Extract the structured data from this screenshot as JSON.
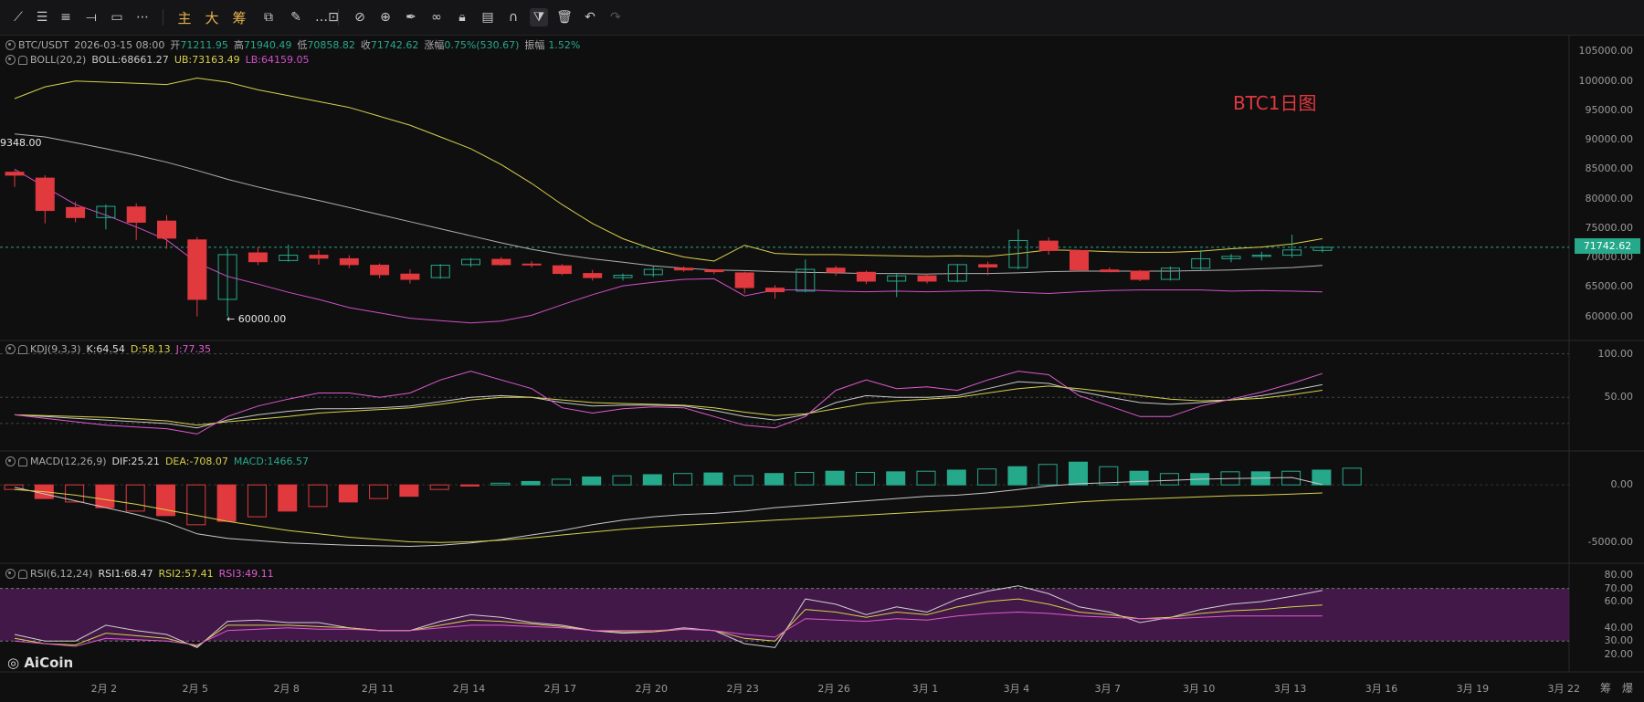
{
  "toolbar": {
    "items": [
      "trend-line",
      "horizontal-line",
      "parallel-channel",
      "ray",
      "rectangle",
      "more-tools",
      "主",
      "大",
      "筹",
      "indicator-settings",
      "brush",
      "text",
      "measure",
      "zoom-in",
      "pen",
      "pattern",
      "lock",
      "template",
      "magnet",
      "filter",
      "delete",
      "undo",
      "redo"
    ],
    "labels": {
      "main": "主",
      "big": "大",
      "chips": "筹"
    }
  },
  "main_legend": {
    "symbol": "BTC/USDT",
    "datetime": "2026-03-15 08:00",
    "open_label": "开",
    "open": "71211.95",
    "high_label": "高",
    "high": "71940.49",
    "low_label": "低",
    "low": "70858.82",
    "close_label": "收",
    "close": "71742.62",
    "change_label": "涨幅",
    "change": "0.75%(530.67)",
    "amp_label": "振幅",
    "amp": "1.52%"
  },
  "boll_legend": {
    "name": "BOLL(20,2)",
    "mid": "BOLL:68661.27",
    "ub": "UB:73163.49",
    "lb": "LB:64159.05"
  },
  "kdj_legend": {
    "name": "KDJ(9,3,3)",
    "k": "K:64.54",
    "d": "D:58.13",
    "j": "J:77.35"
  },
  "macd_legend": {
    "name": "MACD(12,26,9)",
    "dif": "DIF:25.21",
    "dea": "DEA:-708.07",
    "macd": "MACD:1466.57"
  },
  "rsi_legend": {
    "name": "RSI(6,12,24)",
    "r1": "RSI1:68.47",
    "r2": "RSI2:57.41",
    "r3": "RSI3:49.11"
  },
  "annotations": {
    "title": "BTC1日图",
    "high_mark": "9348.00",
    "low_mark": "← 60000.00",
    "current_price": "71742.62",
    "logo": "AiCoin"
  },
  "price_axis": [
    "105000.00",
    "100000.00",
    "95000.00",
    "90000.00",
    "85000.00",
    "80000.00",
    "75000.00",
    "70000.00",
    "65000.00",
    "60000.00"
  ],
  "kdj_axis": [
    "100.00",
    "50.00"
  ],
  "macd_axis": [
    "0.00",
    "-5000.00"
  ],
  "rsi_axis": [
    "80.00",
    "70.00",
    "60.00",
    "40.00",
    "30.00",
    "20.00"
  ],
  "time_axis": [
    "2月 2",
    "2月 5",
    "2月 8",
    "2月 11",
    "2月 14",
    "2月 17",
    "2月 20",
    "2月 23",
    "2月 26",
    "3月 1",
    "3月 4",
    "3月 7",
    "3月 10",
    "3月 13",
    "3月 16",
    "3月 19",
    "3月 22"
  ],
  "side_buttons": [
    "筹",
    "爆"
  ],
  "colors": {
    "up": "#26a88a",
    "down": "#e0393e",
    "boll_mid": "#b0b0b0",
    "boll_ub": "#d8d04a",
    "boll_lb": "#d050c8",
    "kdj_k": "#c8c8c8",
    "kdj_d": "#d8d04a",
    "kdj_j": "#e05ad0",
    "rsi_band": "#4a1a52"
  },
  "chart_data": [
    {
      "type": "candlestick",
      "title": "BTC/USDT",
      "ylim": [
        57000,
        106000
      ],
      "candles": [
        {
          "o": 84500,
          "h": 84800,
          "l": 82000,
          "c": 84000
        },
        {
          "o": 83500,
          "h": 84000,
          "l": 75800,
          "c": 78000
        },
        {
          "o": 78500,
          "h": 79500,
          "l": 76000,
          "c": 76800
        },
        {
          "o": 76800,
          "h": 79000,
          "l": 74800,
          "c": 78700
        },
        {
          "o": 78600,
          "h": 79200,
          "l": 73000,
          "c": 76000
        },
        {
          "o": 76200,
          "h": 77200,
          "l": 71500,
          "c": 73300
        },
        {
          "o": 73000,
          "h": 73500,
          "l": 60000,
          "c": 62900
        },
        {
          "o": 62900,
          "h": 71500,
          "l": 60000,
          "c": 70500
        },
        {
          "o": 70800,
          "h": 71800,
          "l": 68700,
          "c": 69300
        },
        {
          "o": 69500,
          "h": 72200,
          "l": 69300,
          "c": 70400
        },
        {
          "o": 70400,
          "h": 71300,
          "l": 68800,
          "c": 69900
        },
        {
          "o": 69800,
          "h": 70400,
          "l": 68200,
          "c": 68800
        },
        {
          "o": 68700,
          "h": 69000,
          "l": 66500,
          "c": 67100
        },
        {
          "o": 67200,
          "h": 68000,
          "l": 65600,
          "c": 66300
        },
        {
          "o": 66600,
          "h": 68900,
          "l": 66400,
          "c": 68700
        },
        {
          "o": 68800,
          "h": 69900,
          "l": 68400,
          "c": 69700
        },
        {
          "o": 69700,
          "h": 70100,
          "l": 68600,
          "c": 68800
        },
        {
          "o": 68900,
          "h": 69400,
          "l": 68300,
          "c": 68800
        },
        {
          "o": 68600,
          "h": 68900,
          "l": 67000,
          "c": 67300
        },
        {
          "o": 67300,
          "h": 67900,
          "l": 66100,
          "c": 66600
        },
        {
          "o": 66600,
          "h": 67300,
          "l": 66100,
          "c": 67000
        },
        {
          "o": 67100,
          "h": 68500,
          "l": 66700,
          "c": 68000
        },
        {
          "o": 68200,
          "h": 68500,
          "l": 67600,
          "c": 67900
        },
        {
          "o": 67900,
          "h": 68000,
          "l": 67200,
          "c": 67600
        },
        {
          "o": 67400,
          "h": 67600,
          "l": 63900,
          "c": 64900
        },
        {
          "o": 64800,
          "h": 65300,
          "l": 63000,
          "c": 64200
        },
        {
          "o": 64300,
          "h": 69700,
          "l": 64100,
          "c": 68000
        },
        {
          "o": 68200,
          "h": 68600,
          "l": 66900,
          "c": 67500
        },
        {
          "o": 67500,
          "h": 67800,
          "l": 65500,
          "c": 66000
        },
        {
          "o": 66000,
          "h": 67200,
          "l": 63300,
          "c": 66900
        },
        {
          "o": 66900,
          "h": 67200,
          "l": 65600,
          "c": 66000
        },
        {
          "o": 66000,
          "h": 68900,
          "l": 65800,
          "c": 68800
        },
        {
          "o": 68800,
          "h": 69300,
          "l": 67000,
          "c": 68400
        },
        {
          "o": 68300,
          "h": 74800,
          "l": 68000,
          "c": 72900
        },
        {
          "o": 72800,
          "h": 73400,
          "l": 70500,
          "c": 71200
        },
        {
          "o": 71200,
          "h": 71300,
          "l": 67700,
          "c": 67900
        },
        {
          "o": 67900,
          "h": 68300,
          "l": 67500,
          "c": 67600
        },
        {
          "o": 67700,
          "h": 67900,
          "l": 66000,
          "c": 66300
        },
        {
          "o": 66300,
          "h": 68500,
          "l": 66100,
          "c": 68200
        },
        {
          "o": 68200,
          "h": 71300,
          "l": 67900,
          "c": 69800
        },
        {
          "o": 69800,
          "h": 70600,
          "l": 69200,
          "c": 70200
        },
        {
          "o": 70200,
          "h": 71000,
          "l": 69500,
          "c": 70400
        },
        {
          "o": 70400,
          "h": 73900,
          "l": 70000,
          "c": 71300
        },
        {
          "o": 71211.95,
          "h": 71940.49,
          "l": 70858.82,
          "c": 71742.62
        }
      ],
      "boll_ub": [
        97000,
        99000,
        100000,
        99800,
        99600,
        99400,
        100500,
        99800,
        98500,
        97500,
        96500,
        95500,
        94000,
        92500,
        90500,
        88500,
        85800,
        82600,
        79000,
        75800,
        73200,
        71400,
        70100,
        69400,
        72100,
        70700,
        70500,
        70500,
        70400,
        70300,
        70200,
        70300,
        70200,
        70700,
        71300,
        71200,
        71000,
        70900,
        70900,
        71100,
        71500,
        71800,
        72300,
        73200
      ],
      "boll_mid": [
        91000,
        90500,
        89500,
        88500,
        87400,
        86200,
        84800,
        83300,
        82000,
        80800,
        79700,
        78500,
        77300,
        76100,
        74900,
        73700,
        72500,
        71400,
        70500,
        69800,
        69200,
        68600,
        68200,
        67900,
        67800,
        67600,
        67500,
        67400,
        67300,
        67300,
        67200,
        67300,
        67300,
        67400,
        67600,
        67700,
        67700,
        67700,
        67700,
        67800,
        67900,
        68100,
        68300,
        68661
      ],
      "boll_lb": [
        85000,
        82000,
        79000,
        77200,
        75200,
        73000,
        69100,
        66800,
        65500,
        64100,
        62900,
        61500,
        60600,
        59700,
        59300,
        58900,
        59200,
        60200,
        62000,
        63700,
        65200,
        65800,
        66300,
        66400,
        63500,
        64500,
        64500,
        64300,
        64200,
        64300,
        64200,
        64300,
        64400,
        64100,
        63900,
        64200,
        64400,
        64500,
        64500,
        64500,
        64300,
        64400,
        64300,
        64159
      ]
    },
    {
      "type": "line",
      "title": "KDJ(9,3,3)",
      "ylim": [
        0,
        110
      ],
      "series": [
        {
          "name": "K",
          "values": [
            30,
            28,
            26,
            24,
            22,
            20,
            15,
            24,
            30,
            34,
            37,
            37,
            38,
            40,
            45,
            50,
            52,
            50,
            44,
            40,
            41,
            41,
            40,
            35,
            28,
            24,
            30,
            44,
            52,
            50,
            50,
            52,
            60,
            68,
            66,
            57,
            50,
            44,
            42,
            44,
            47,
            52,
            58,
            64.54
          ]
        },
        {
          "name": "D",
          "values": [
            30,
            29,
            28,
            27,
            25,
            23,
            18,
            22,
            25,
            28,
            32,
            34,
            36,
            38,
            42,
            47,
            50,
            50,
            47,
            44,
            43,
            42,
            41,
            38,
            33,
            29,
            31,
            37,
            43,
            46,
            48,
            50,
            55,
            60,
            63,
            60,
            56,
            52,
            48,
            46,
            47,
            49,
            53,
            58.13
          ]
        },
        {
          "name": "J",
          "values": [
            30,
            26,
            22,
            18,
            16,
            14,
            8,
            28,
            40,
            48,
            55,
            55,
            50,
            55,
            70,
            80,
            70,
            60,
            38,
            32,
            37,
            39,
            38,
            28,
            18,
            15,
            28,
            58,
            70,
            60,
            62,
            58,
            70,
            80,
            76,
            52,
            40,
            28,
            28,
            40,
            48,
            56,
            66,
            77.35
          ]
        }
      ]
    },
    {
      "type": "bar",
      "title": "MACD(12,26,9)",
      "ylim": [
        -6000,
        2500
      ],
      "values": [
        -400,
        -1200,
        -1500,
        -2000,
        -2300,
        -2700,
        -3500,
        -3200,
        -2800,
        -2300,
        -1900,
        -1500,
        -1200,
        -1000,
        -400,
        -100,
        150,
        300,
        500,
        700,
        800,
        900,
        1000,
        1050,
        800,
        1000,
        1100,
        1200,
        1100,
        1150,
        1200,
        1300,
        1400,
        1600,
        1800,
        2000,
        1600,
        1200,
        1000,
        1000,
        1150,
        1150,
        1200,
        1300,
        1466.57
      ],
      "series": [
        {
          "name": "DIF",
          "values": [
            -200,
            -800,
            -1400,
            -2000,
            -2600,
            -3300,
            -4300,
            -4700,
            -4900,
            -5100,
            -5200,
            -5300,
            -5350,
            -5400,
            -5300,
            -5100,
            -4800,
            -4400,
            -4000,
            -3500,
            -3100,
            -2800,
            -2600,
            -2500,
            -2300,
            -2000,
            -1800,
            -1600,
            -1400,
            -1200,
            -1000,
            -900,
            -700,
            -400,
            -100,
            100,
            200,
            300,
            400,
            500,
            550,
            600,
            650,
            25.21
          ]
        },
        {
          "name": "DEA",
          "values": [
            -400,
            -600,
            -900,
            -1300,
            -1700,
            -2200,
            -2700,
            -3200,
            -3600,
            -4000,
            -4300,
            -4600,
            -4800,
            -5000,
            -5050,
            -5000,
            -4850,
            -4650,
            -4400,
            -4150,
            -3900,
            -3700,
            -3550,
            -3400,
            -3250,
            -3100,
            -2950,
            -2800,
            -2650,
            -2500,
            -2350,
            -2200,
            -2050,
            -1900,
            -1700,
            -1500,
            -1350,
            -1250,
            -1150,
            -1050,
            -950,
            -900,
            -800,
            -708.07
          ]
        }
      ]
    },
    {
      "type": "line",
      "title": "RSI(6,12,24)",
      "ylim": [
        10,
        85
      ],
      "series": [
        {
          "name": "RSI1",
          "values": [
            35,
            30,
            30,
            42,
            38,
            35,
            25,
            45,
            46,
            44,
            44,
            40,
            38,
            38,
            45,
            50,
            48,
            44,
            42,
            38,
            36,
            37,
            40,
            38,
            28,
            25,
            62,
            58,
            50,
            56,
            52,
            62,
            68,
            72,
            66,
            56,
            52,
            44,
            48,
            54,
            58,
            60,
            64,
            68.47
          ]
        },
        {
          "name": "RSI2",
          "values": [
            32,
            28,
            27,
            36,
            34,
            32,
            26,
            42,
            42,
            42,
            41,
            40,
            38,
            38,
            42,
            46,
            45,
            43,
            41,
            38,
            37,
            37,
            39,
            38,
            32,
            30,
            54,
            52,
            48,
            52,
            50,
            56,
            60,
            62,
            58,
            52,
            50,
            47,
            48,
            51,
            53,
            54,
            56,
            57.41
          ]
        },
        {
          "name": "RSI3",
          "values": [
            30,
            28,
            26,
            32,
            31,
            30,
            27,
            38,
            39,
            40,
            39,
            39,
            38,
            38,
            40,
            42,
            42,
            41,
            40,
            38,
            38,
            38,
            39,
            38,
            35,
            33,
            47,
            46,
            45,
            47,
            46,
            49,
            51,
            52,
            51,
            49,
            48,
            47,
            47,
            48,
            49,
            49,
            49,
            49.11
          ]
        }
      ]
    }
  ]
}
